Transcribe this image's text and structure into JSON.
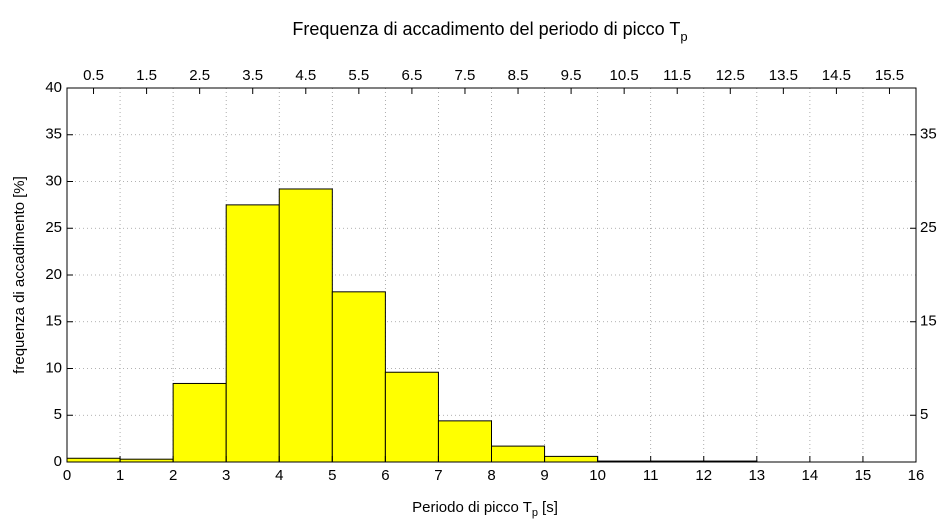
{
  "chart_data": {
    "type": "histogram",
    "title": {
      "text": "Frequenza di accadimento del periodo di picco T",
      "sub": "p"
    },
    "xlabel": {
      "text": "Periodo di picco  T",
      "sub": "p",
      "unit": "[s]"
    },
    "ylabel": "frequenza di accadimento [%]",
    "bins": [
      0,
      1,
      2,
      3,
      4,
      5,
      6,
      7,
      8,
      9,
      10,
      11,
      12,
      13,
      14,
      15,
      16
    ],
    "values": [
      0.4,
      0.3,
      8.4,
      27.5,
      29.2,
      18.2,
      9.6,
      4.4,
      1.7,
      0.6,
      0.1,
      0.1,
      0.1,
      0,
      0,
      0
    ],
    "color": "#ffff00",
    "xlim": [
      0,
      16
    ],
    "xticks": [
      0,
      1,
      2,
      3,
      4,
      5,
      6,
      7,
      8,
      9,
      10,
      11,
      12,
      13,
      14,
      15,
      16
    ],
    "x2lim": [
      0,
      16
    ],
    "x2ticks": [
      0.5,
      1.5,
      2.5,
      3.5,
      4.5,
      5.5,
      6.5,
      7.5,
      8.5,
      9.5,
      10.5,
      11.5,
      12.5,
      13.5,
      14.5,
      15.5
    ],
    "ylim": [
      0,
      40
    ],
    "yticks": [
      0,
      5,
      10,
      15,
      20,
      25,
      30,
      35,
      40
    ],
    "y2lim": [
      0,
      40
    ],
    "y2ticks": [
      5,
      15,
      25,
      35
    ],
    "grid": true
  }
}
